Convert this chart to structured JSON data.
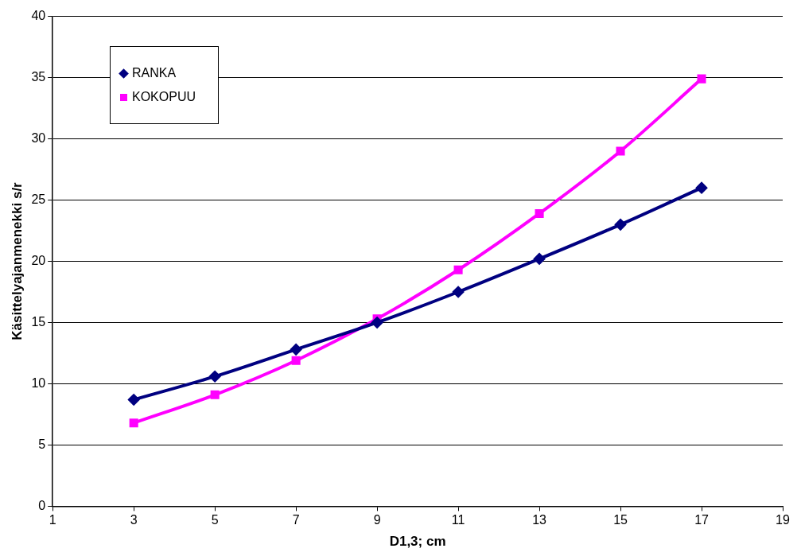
{
  "chart_data": {
    "type": "line",
    "xlabel": "D1,3; cm",
    "ylabel": "Käsittelyajanmenekki s/r",
    "x": [
      3,
      5,
      7,
      9,
      11,
      13,
      15,
      17
    ],
    "series": [
      {
        "name": "RANKA",
        "color": "#000080",
        "marker": "diamond",
        "values": [
          8.7,
          10.6,
          12.8,
          15.0,
          17.5,
          20.2,
          23.0,
          26.0
        ]
      },
      {
        "name": "KOKOPUU",
        "color": "#ff00ff",
        "marker": "square",
        "values": [
          6.8,
          9.1,
          11.9,
          15.3,
          19.3,
          23.9,
          29.0,
          34.9
        ]
      }
    ],
    "xlim": [
      1,
      19
    ],
    "xticks": [
      1,
      3,
      5,
      7,
      9,
      11,
      13,
      15,
      17,
      19
    ],
    "ylim": [
      0,
      40
    ],
    "yticks": [
      0,
      5,
      10,
      15,
      20,
      25,
      30,
      35,
      40
    ],
    "grid": "y",
    "legend": "top left",
    "line_style": "solid"
  }
}
